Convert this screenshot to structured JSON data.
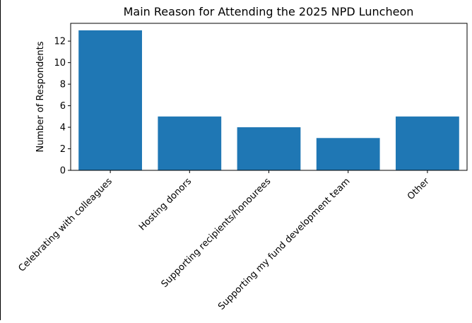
{
  "chart_data": {
    "type": "bar",
    "title": "Main Reason for Attending the 2025 NPD Luncheon",
    "xlabel": "",
    "ylabel": "Number of Respondents",
    "categories": [
      "Celebrating with colleagues",
      "Hosting donors",
      "Supporting recipients/honourees",
      "Supporting my fund development team",
      "Other"
    ],
    "values": [
      13,
      5,
      4,
      3,
      5
    ],
    "ylim": [
      0,
      13.65
    ],
    "yticks": [
      0,
      2,
      4,
      6,
      8,
      10,
      12
    ],
    "bar_color": "#1f77b4",
    "grid": false,
    "legend": "none"
  }
}
